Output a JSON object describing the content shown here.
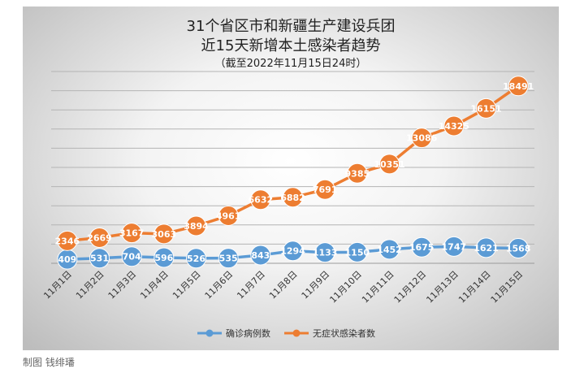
{
  "credit": "制图 钱绯璠",
  "chart_data": {
    "type": "line",
    "title_lines": [
      "31个省区市和新疆生产建设兵团",
      "近15天新增本土感染者趋势"
    ],
    "subtitle": "（截至2022年11月15日24时）",
    "categories": [
      "11月1日",
      "11月2日",
      "11月3日",
      "11月4日",
      "11月5日",
      "11月6日",
      "11月7日",
      "11月8日",
      "11月9日",
      "11月10日",
      "11月11日",
      "11月12日",
      "11月13日",
      "11月14日",
      "11月15日"
    ],
    "series": [
      {
        "name": "确诊病例数",
        "color": "#5b9bd5",
        "values": [
          409,
          531,
          704,
          596,
          526,
          535,
          843,
          1294,
          1133,
          1150,
          1452,
          1675,
          1747,
          1621,
          1568
        ]
      },
      {
        "name": "无症状感染者数",
        "color": "#ed7d31",
        "values": [
          2346,
          2669,
          3167,
          3063,
          3894,
          4961,
          6632,
          6882,
          7691,
          9385,
          10351,
          13086,
          14325,
          16151,
          18491
        ]
      }
    ],
    "ylim": [
      0,
      20000
    ],
    "grid": true,
    "legend_position": "bottom"
  }
}
